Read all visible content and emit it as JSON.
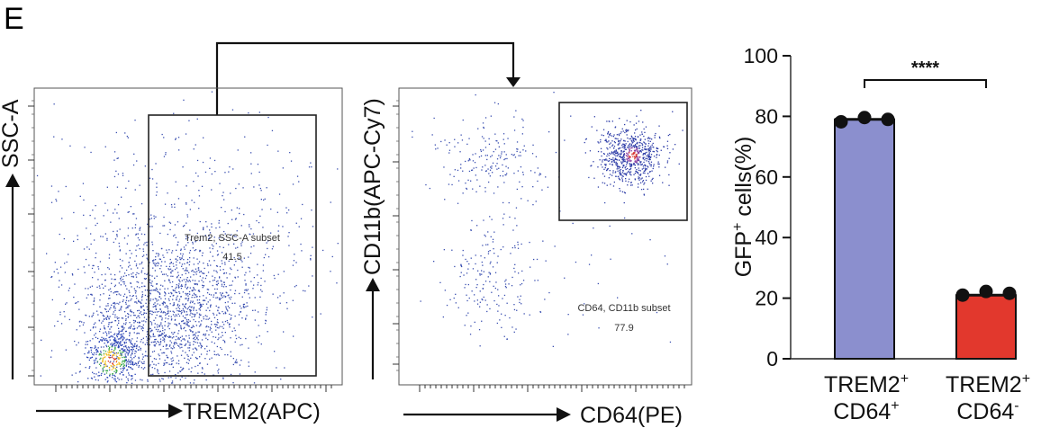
{
  "panel_letter": "E",
  "flow_plot_1": {
    "y_label": "SSC-A",
    "x_label": "TREM2(APC)",
    "gate_name": "Trem2, SSC-A subset",
    "gate_value": "41.5"
  },
  "flow_plot_2": {
    "y_label": "CD11b(APC-Cy7)",
    "x_label": "CD64(PE)",
    "gate_name": "CD64, CD11b subset",
    "gate_value": "77.9"
  },
  "chart_data": {
    "type": "bar",
    "categories": [
      {
        "main": "TREM2",
        "sup1": "+",
        "line2": "CD64",
        "sup2": "+"
      },
      {
        "main": "TREM2",
        "sup1": "+",
        "line2": "CD64",
        "sup2": "-"
      }
    ],
    "values": [
      79,
      21
    ],
    "points": [
      [
        78.2,
        79.6,
        79.0
      ],
      [
        21.0,
        22.2,
        21.6
      ]
    ],
    "bar_colors": [
      "#8b8fce",
      "#e2382d"
    ],
    "ylabel": {
      "pre": "GFP",
      "sup": "+",
      "post": " cells(%)"
    },
    "yticks": [
      "0",
      "20",
      "40",
      "60",
      "80",
      "100"
    ],
    "ylim": [
      0,
      100
    ],
    "significance": "****"
  }
}
